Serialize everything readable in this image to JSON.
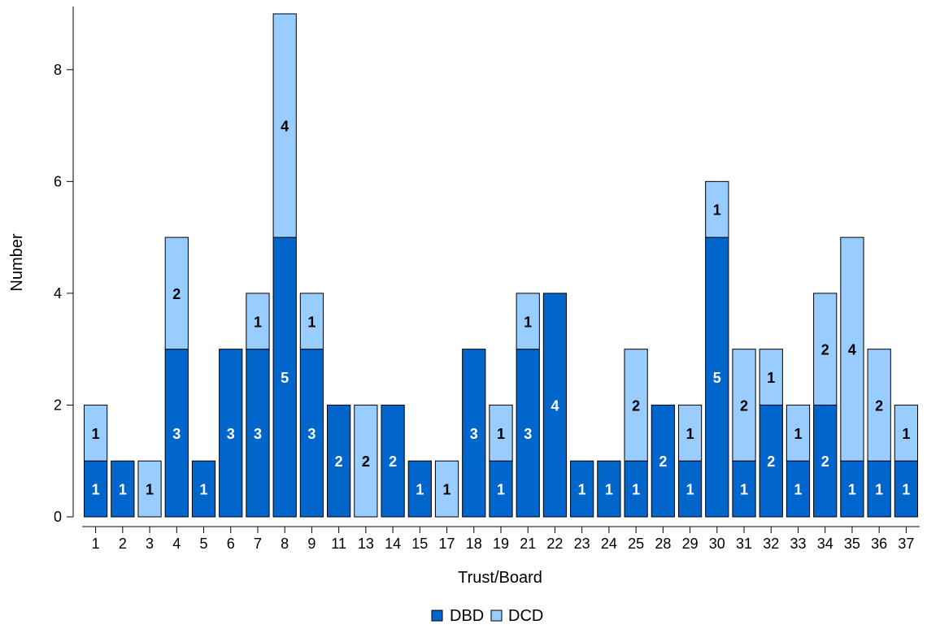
{
  "chart_data": {
    "type": "bar",
    "stacked": true,
    "xlabel": "Trust/Board",
    "ylabel": "Number",
    "ylim": [
      0,
      9
    ],
    "yticks": [
      0,
      2,
      4,
      6,
      8
    ],
    "grid": false,
    "legend_position": "bottom",
    "categories": [
      "1",
      "2",
      "3",
      "4",
      "5",
      "6",
      "7",
      "8",
      "9",
      "11",
      "13",
      "14",
      "15",
      "17",
      "18",
      "19",
      "21",
      "22",
      "23",
      "24",
      "25",
      "28",
      "29",
      "30",
      "31",
      "32",
      "33",
      "34",
      "35",
      "36",
      "37"
    ],
    "series": [
      {
        "name": "DBD",
        "color": "#0066cc",
        "label_color": "#ffffff",
        "values": [
          1,
          1,
          0,
          3,
          1,
          3,
          3,
          5,
          3,
          2,
          0,
          2,
          1,
          0,
          3,
          1,
          3,
          4,
          1,
          1,
          1,
          2,
          1,
          5,
          1,
          2,
          1,
          2,
          1,
          1,
          1
        ]
      },
      {
        "name": "DCD",
        "color": "#99ccff",
        "label_color": "#000000",
        "values": [
          1,
          0,
          1,
          2,
          0,
          0,
          1,
          4,
          1,
          0,
          2,
          0,
          0,
          1,
          0,
          1,
          1,
          0,
          0,
          0,
          2,
          0,
          1,
          1,
          2,
          1,
          1,
          2,
          4,
          2,
          1
        ]
      }
    ]
  }
}
